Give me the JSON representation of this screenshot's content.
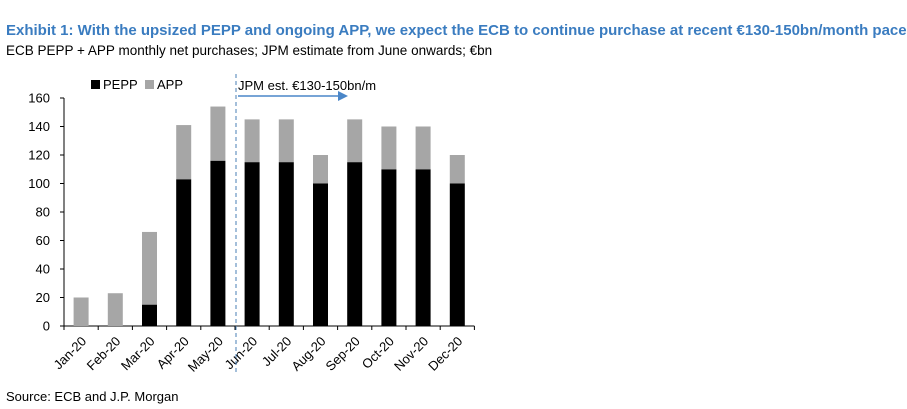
{
  "header": {
    "title": "Exhibit 1: With the upsized PEPP and ongoing APP, we expect the ECB to continue purchase at recent €130-150bn/month pace",
    "subtitle": "ECB PEPP + APP monthly net purchases; JPM estimate from June onwards; €bn"
  },
  "footer": {
    "source": "Source: ECB and J.P. Morgan"
  },
  "colors": {
    "pepp": "#000000",
    "app": "#a6a6a6",
    "title": "#3a7cc0",
    "arrow": "#4a86c8",
    "divider": "#4a7fb5"
  },
  "chart_data": {
    "type": "bar",
    "stacked": true,
    "categories": [
      "Jan-20",
      "Feb-20",
      "Mar-20",
      "Apr-20",
      "May-20",
      "Jun-20",
      "Jul-20",
      "Aug-20",
      "Sep-20",
      "Oct-20",
      "Nov-20",
      "Dec-20"
    ],
    "series": [
      {
        "name": "PEPP",
        "values": [
          0,
          0,
          15,
          103,
          116,
          115,
          115,
          100,
          115,
          110,
          110,
          100
        ]
      },
      {
        "name": "APP",
        "values": [
          20,
          23,
          51,
          38,
          38,
          30,
          30,
          20,
          30,
          30,
          30,
          20
        ]
      }
    ],
    "ylim": [
      0,
      160
    ],
    "yticks": [
      0,
      20,
      40,
      60,
      80,
      100,
      120,
      140,
      160
    ],
    "annotation": "JPM est. €130-150bn/m",
    "estimate_start_category": "Jun-20",
    "legend_position": "top-left",
    "grid": false
  }
}
